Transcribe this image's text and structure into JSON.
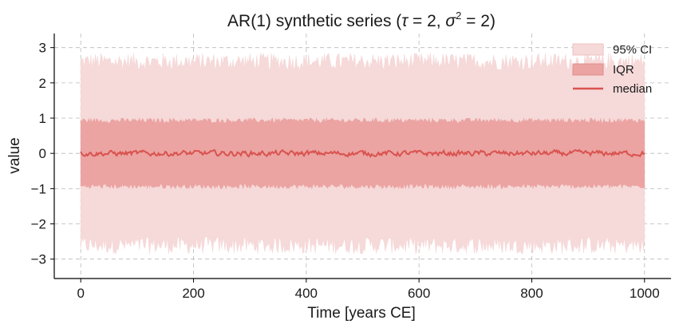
{
  "chart_data": {
    "type": "area",
    "title": {
      "prefix": "AR(1) synthetic series (",
      "tau_sym": "τ",
      "tau_eq": " = 2, ",
      "sigma_sym": "σ",
      "sigma_exp": "2",
      "sigma_eq": " = 2)"
    },
    "xlabel": "Time [years CE]",
    "ylabel": "value",
    "xlim": [
      -47,
      1047
    ],
    "ylim": [
      -3.55,
      3.4
    ],
    "xticks": [
      0,
      200,
      400,
      600,
      800,
      1000
    ],
    "xtick_labels": [
      "0",
      "200",
      "400",
      "600",
      "800",
      "1000"
    ],
    "yticks": [
      -3,
      -2,
      -1,
      0,
      1,
      2,
      3
    ],
    "ytick_labels": [
      "−3",
      "−2",
      "−1",
      "0",
      "1",
      "2",
      "3"
    ],
    "grid": true,
    "legend_position": "top-right",
    "series": [
      {
        "name": "95% CI",
        "kind": "band",
        "lower": -2.6,
        "upper": 2.6,
        "color": "#f6d9d9"
      },
      {
        "name": "IQR",
        "kind": "band",
        "lower": -0.93,
        "upper": 0.93,
        "color": "#eba4a2"
      },
      {
        "name": "median",
        "kind": "line",
        "value": 0.0,
        "color": "#d9534f"
      }
    ],
    "x_range": [
      0,
      1000
    ]
  }
}
